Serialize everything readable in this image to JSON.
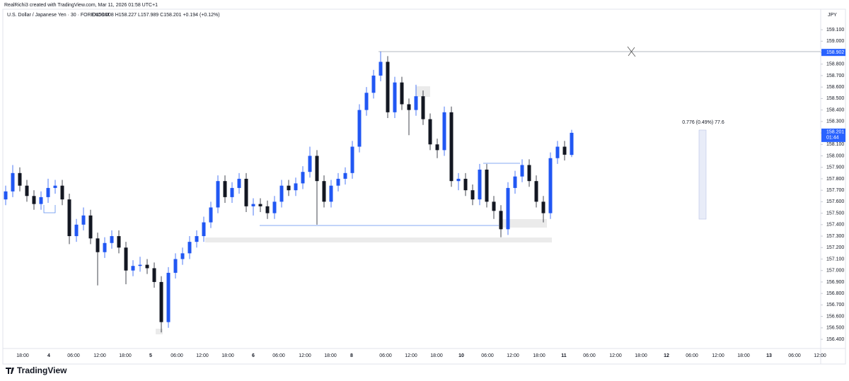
{
  "chart_data": {
    "type": "candlestick",
    "header": "RealRichi3 created with TradingView.com, Mar 11, 2026 01:58 UTC+1",
    "symbol": "U.S. Dollar / Japanese Yen · 30 · FOREXCOM",
    "ohlc_legend": "O158.008 H158.227 L157.989 C158.201 +0.194 (+0.12%)",
    "currency": "JPY",
    "brand": "TradingView",
    "measure_label": "0.776 (0.49%) 77.6",
    "level": 158.902,
    "last_price": 158.201,
    "countdown": "01:44",
    "up_color": "#2157f3",
    "down_color": "#131722",
    "grid": false,
    "ylim": [
      156.32,
      159.273
    ],
    "yticks": [
      {
        "value": 159.1,
        "label": "159.100"
      },
      {
        "value": 159.0,
        "label": "159.000"
      },
      {
        "value": 158.9,
        "label": "158.900"
      },
      {
        "value": 158.8,
        "label": "158.800"
      },
      {
        "value": 158.7,
        "label": "158.700"
      },
      {
        "value": 158.6,
        "label": "158.600"
      },
      {
        "value": 158.5,
        "label": "158.500"
      },
      {
        "value": 158.4,
        "label": "158.400"
      },
      {
        "value": 158.3,
        "label": "158.300"
      },
      {
        "value": 158.2,
        "label": "158.200"
      },
      {
        "value": 158.1,
        "label": "158.100"
      },
      {
        "value": 158.0,
        "label": "158.000"
      },
      {
        "value": 157.9,
        "label": "157.900"
      },
      {
        "value": 157.8,
        "label": "157.800"
      },
      {
        "value": 157.7,
        "label": "157.700"
      },
      {
        "value": 157.6,
        "label": "157.600"
      },
      {
        "value": 157.5,
        "label": "157.500"
      },
      {
        "value": 157.4,
        "label": "157.400"
      },
      {
        "value": 157.3,
        "label": "157.300"
      },
      {
        "value": 157.2,
        "label": "157.200"
      },
      {
        "value": 157.1,
        "label": "157.100"
      },
      {
        "value": 157.0,
        "label": "157.000"
      },
      {
        "value": 156.9,
        "label": "156.900"
      },
      {
        "value": 156.8,
        "label": "156.800"
      },
      {
        "value": 156.7,
        "label": "156.700"
      },
      {
        "value": 156.6,
        "label": "156.600"
      },
      {
        "value": 156.5,
        "label": "156.500"
      },
      {
        "value": 156.4,
        "label": "156.400"
      }
    ],
    "xticks": [
      "18:00",
      "4",
      "06:00",
      "12:00",
      "18:00",
      "5",
      "06:00",
      "12:00",
      "18:00",
      "6",
      "06:00",
      "12:00",
      "18:00",
      "8",
      "06:00",
      "12:00",
      "18:00",
      "10",
      "06:00",
      "12:00",
      "18:00",
      "11",
      "06:00",
      "12:00",
      "18:00",
      "12",
      "06:00",
      "12:00",
      "18:00",
      "13",
      "06:00",
      "12:00"
    ],
    "open": [
      157.62,
      157.69,
      157.85,
      157.74,
      157.65,
      157.58,
      157.64,
      157.72,
      157.74,
      157.62,
      157.3,
      157.4,
      157.48,
      157.28,
      157.16,
      157.24,
      157.3,
      157.2,
      157.0,
      157.04,
      157.05,
      157.02,
      156.9,
      156.55,
      156.98,
      157.1,
      157.15,
      157.25,
      157.3,
      157.42,
      157.55,
      157.78,
      157.64,
      157.72,
      157.8,
      157.56,
      157.58,
      157.56,
      157.5,
      157.6,
      157.74,
      157.7,
      157.76,
      157.86,
      158.0,
      157.78,
      157.6,
      157.74,
      157.8,
      157.85,
      158.08,
      158.4,
      158.55,
      158.7,
      158.82,
      158.38,
      158.64,
      158.45,
      158.4,
      158.52,
      158.32,
      158.1,
      158.05,
      158.38,
      157.78,
      157.8,
      157.7,
      157.62,
      157.88,
      157.6,
      157.52,
      157.36,
      157.72,
      157.82,
      157.92,
      157.78,
      157.6,
      157.5,
      157.98,
      158.08,
      158.008
    ],
    "high": [
      157.74,
      157.92,
      157.9,
      157.79,
      157.7,
      157.69,
      157.8,
      157.79,
      157.79,
      157.67,
      157.45,
      157.55,
      157.53,
      157.33,
      157.29,
      157.35,
      157.35,
      157.25,
      157.09,
      157.12,
      157.1,
      157.07,
      156.95,
      157.03,
      157.15,
      157.2,
      157.3,
      157.35,
      157.47,
      157.6,
      157.83,
      157.83,
      157.77,
      157.85,
      157.85,
      157.63,
      157.63,
      157.61,
      157.65,
      157.79,
      157.79,
      157.81,
      157.91,
      158.08,
      158.05,
      157.83,
      157.79,
      157.85,
      157.9,
      158.13,
      158.45,
      158.6,
      158.75,
      158.91,
      158.87,
      158.69,
      158.69,
      158.5,
      158.62,
      158.57,
      158.37,
      158.15,
      158.43,
      158.43,
      157.85,
      157.85,
      157.75,
      157.93,
      157.93,
      157.65,
      157.57,
      157.77,
      157.87,
      157.97,
      157.97,
      157.83,
      157.65,
      158.03,
      158.13,
      158.13,
      158.227
    ],
    "low": [
      157.57,
      157.64,
      157.69,
      157.6,
      157.53,
      157.53,
      157.59,
      157.67,
      157.57,
      157.23,
      157.25,
      157.35,
      157.23,
      156.87,
      157.11,
      157.19,
      157.15,
      156.88,
      156.95,
      156.99,
      156.97,
      156.85,
      156.46,
      156.5,
      156.93,
      157.05,
      157.1,
      157.2,
      157.25,
      157.37,
      157.5,
      157.59,
      157.59,
      157.67,
      157.51,
      157.48,
      157.51,
      157.45,
      157.45,
      157.55,
      157.65,
      157.65,
      157.71,
      157.81,
      157.4,
      157.55,
      157.55,
      157.69,
      157.75,
      157.8,
      158.03,
      158.35,
      158.5,
      158.65,
      158.33,
      158.33,
      158.4,
      158.18,
      158.35,
      158.27,
      158.05,
      157.98,
      158.0,
      157.73,
      157.7,
      157.65,
      157.57,
      157.57,
      157.55,
      157.45,
      157.29,
      157.31,
      157.67,
      157.77,
      157.73,
      157.55,
      157.42,
      157.45,
      157.93,
      157.96,
      157.989
    ],
    "close": [
      157.69,
      157.85,
      157.74,
      157.65,
      157.58,
      157.64,
      157.72,
      157.74,
      157.62,
      157.3,
      157.4,
      157.48,
      157.28,
      157.16,
      157.24,
      157.3,
      157.2,
      157.0,
      157.04,
      157.05,
      157.02,
      156.9,
      156.55,
      156.98,
      157.1,
      157.15,
      157.25,
      157.3,
      157.42,
      157.55,
      157.78,
      157.64,
      157.72,
      157.8,
      157.56,
      157.58,
      157.56,
      157.5,
      157.6,
      157.74,
      157.7,
      157.76,
      157.86,
      158.0,
      157.78,
      157.6,
      157.74,
      157.8,
      157.85,
      158.08,
      158.4,
      158.55,
      158.7,
      158.82,
      158.38,
      158.64,
      158.45,
      158.4,
      158.52,
      158.32,
      158.1,
      158.05,
      158.38,
      157.78,
      157.8,
      157.7,
      157.62,
      157.88,
      157.6,
      157.52,
      157.36,
      157.72,
      157.82,
      157.92,
      157.78,
      157.6,
      157.5,
      157.98,
      158.08,
      158.01,
      158.201
    ]
  }
}
